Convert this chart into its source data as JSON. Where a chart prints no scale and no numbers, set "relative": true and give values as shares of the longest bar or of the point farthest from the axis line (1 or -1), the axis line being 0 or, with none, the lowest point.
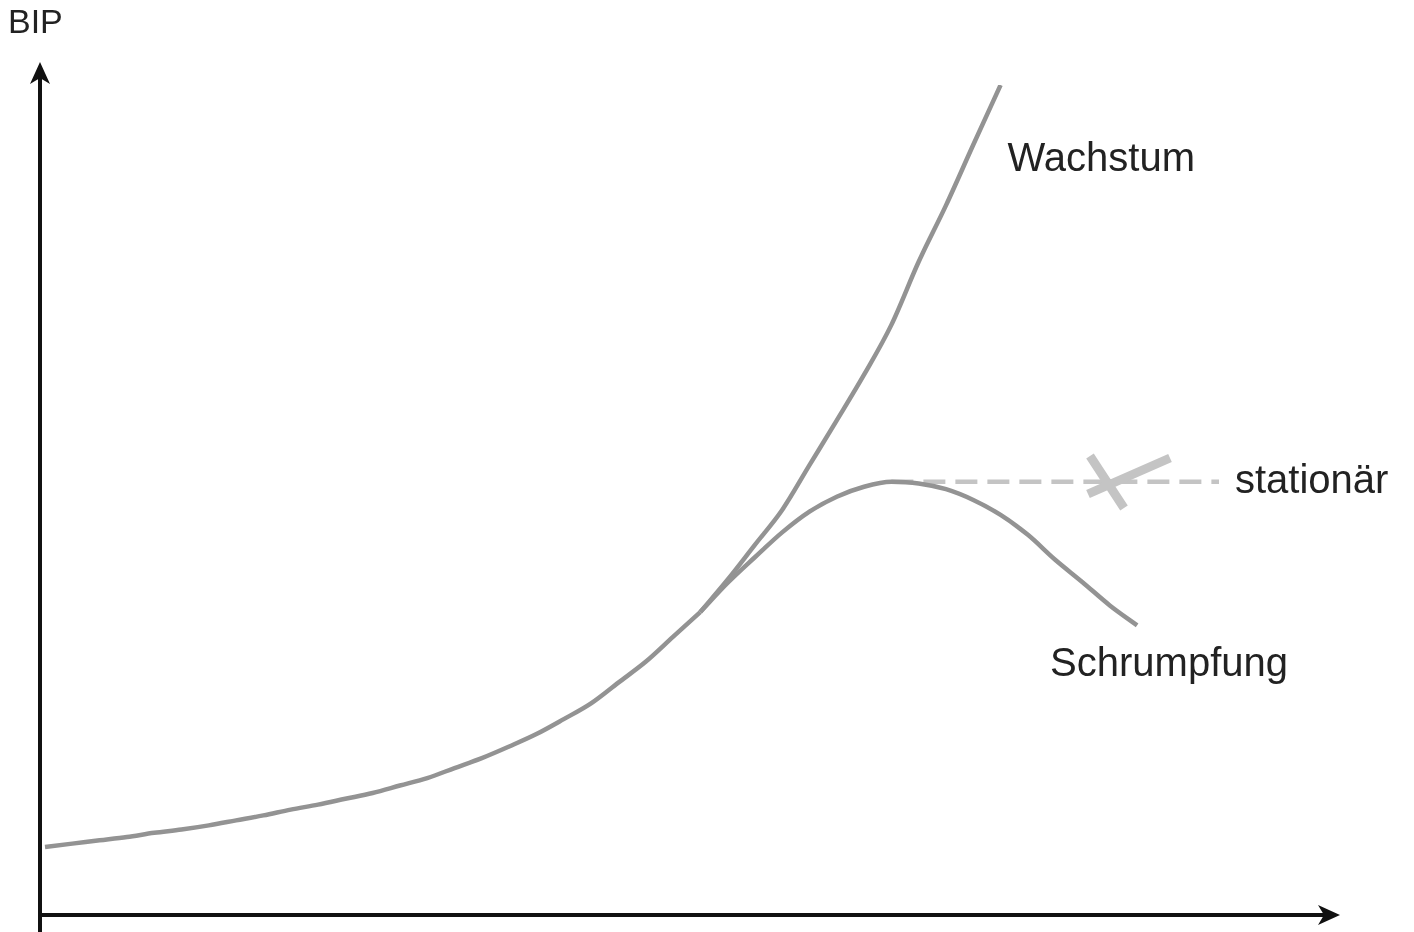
{
  "chart_data": {
    "type": "line",
    "ylabel": "BIP",
    "relative": true,
    "categories": [
      null,
      null,
      null,
      null,
      null,
      null,
      null,
      null,
      null,
      null,
      null,
      null,
      null,
      null,
      null,
      null,
      null,
      null,
      null,
      null,
      null,
      null,
      null,
      null,
      null,
      null,
      null,
      null,
      null,
      null,
      null,
      null,
      null,
      null,
      null,
      null,
      null,
      null,
      null,
      null,
      null,
      null,
      null,
      null
    ],
    "series": [
      {
        "color": "#939393",
        "values": [
          0.082,
          0.086,
          0.09,
          0.094,
          0.099,
          0.103,
          0.108,
          0.114,
          0.12,
          0.127,
          0.133,
          0.14,
          0.147,
          0.156,
          0.165,
          0.177,
          0.189,
          0.203,
          0.218,
          0.236,
          0.255,
          0.28,
          0.305,
          0.335,
          0.365,
          null,
          null,
          null,
          null,
          null,
          null,
          null,
          null,
          null,
          null,
          null,
          null,
          null,
          null,
          null,
          null,
          null,
          null,
          null
        ]
      },
      {
        "name": "Wachstum",
        "color": "#939393",
        "values": [
          null,
          null,
          null,
          null,
          null,
          null,
          null,
          null,
          null,
          null,
          null,
          null,
          null,
          null,
          null,
          null,
          null,
          null,
          null,
          null,
          null,
          null,
          null,
          null,
          0.365,
          0.404,
          0.446,
          0.488,
          0.542,
          0.596,
          0.651,
          0.711,
          0.787,
          0.855,
          0.928,
          1,
          null,
          null,
          null,
          null,
          null,
          null,
          null,
          null
        ]
      },
      {
        "name": "Schrumpfung",
        "color": "#939393",
        "values": [
          null,
          null,
          null,
          null,
          null,
          null,
          null,
          null,
          null,
          null,
          null,
          null,
          null,
          null,
          null,
          null,
          null,
          null,
          null,
          null,
          null,
          null,
          null,
          null,
          0.365,
          0.4,
          0.431,
          0.461,
          0.486,
          0.504,
          0.516,
          0.522,
          0.52,
          0.513,
          0.5,
          0.482,
          0.458,
          0.428,
          0.401,
          0.373,
          0.349,
          null,
          null,
          null
        ]
      },
      {
        "name": "stationär",
        "color": "#c4c4c4",
        "line_style": "dashed",
        "values": [
          null,
          null,
          null,
          null,
          null,
          null,
          null,
          null,
          null,
          null,
          null,
          null,
          null,
          null,
          null,
          null,
          null,
          null,
          null,
          null,
          null,
          null,
          null,
          null,
          null,
          null,
          null,
          null,
          null,
          null,
          null,
          0.522,
          0.522,
          0.522,
          0.522,
          0.522,
          0.522,
          0.522,
          0.522,
          0.522,
          0.522,
          0.522,
          0.522,
          0.522
        ]
      }
    ]
  }
}
